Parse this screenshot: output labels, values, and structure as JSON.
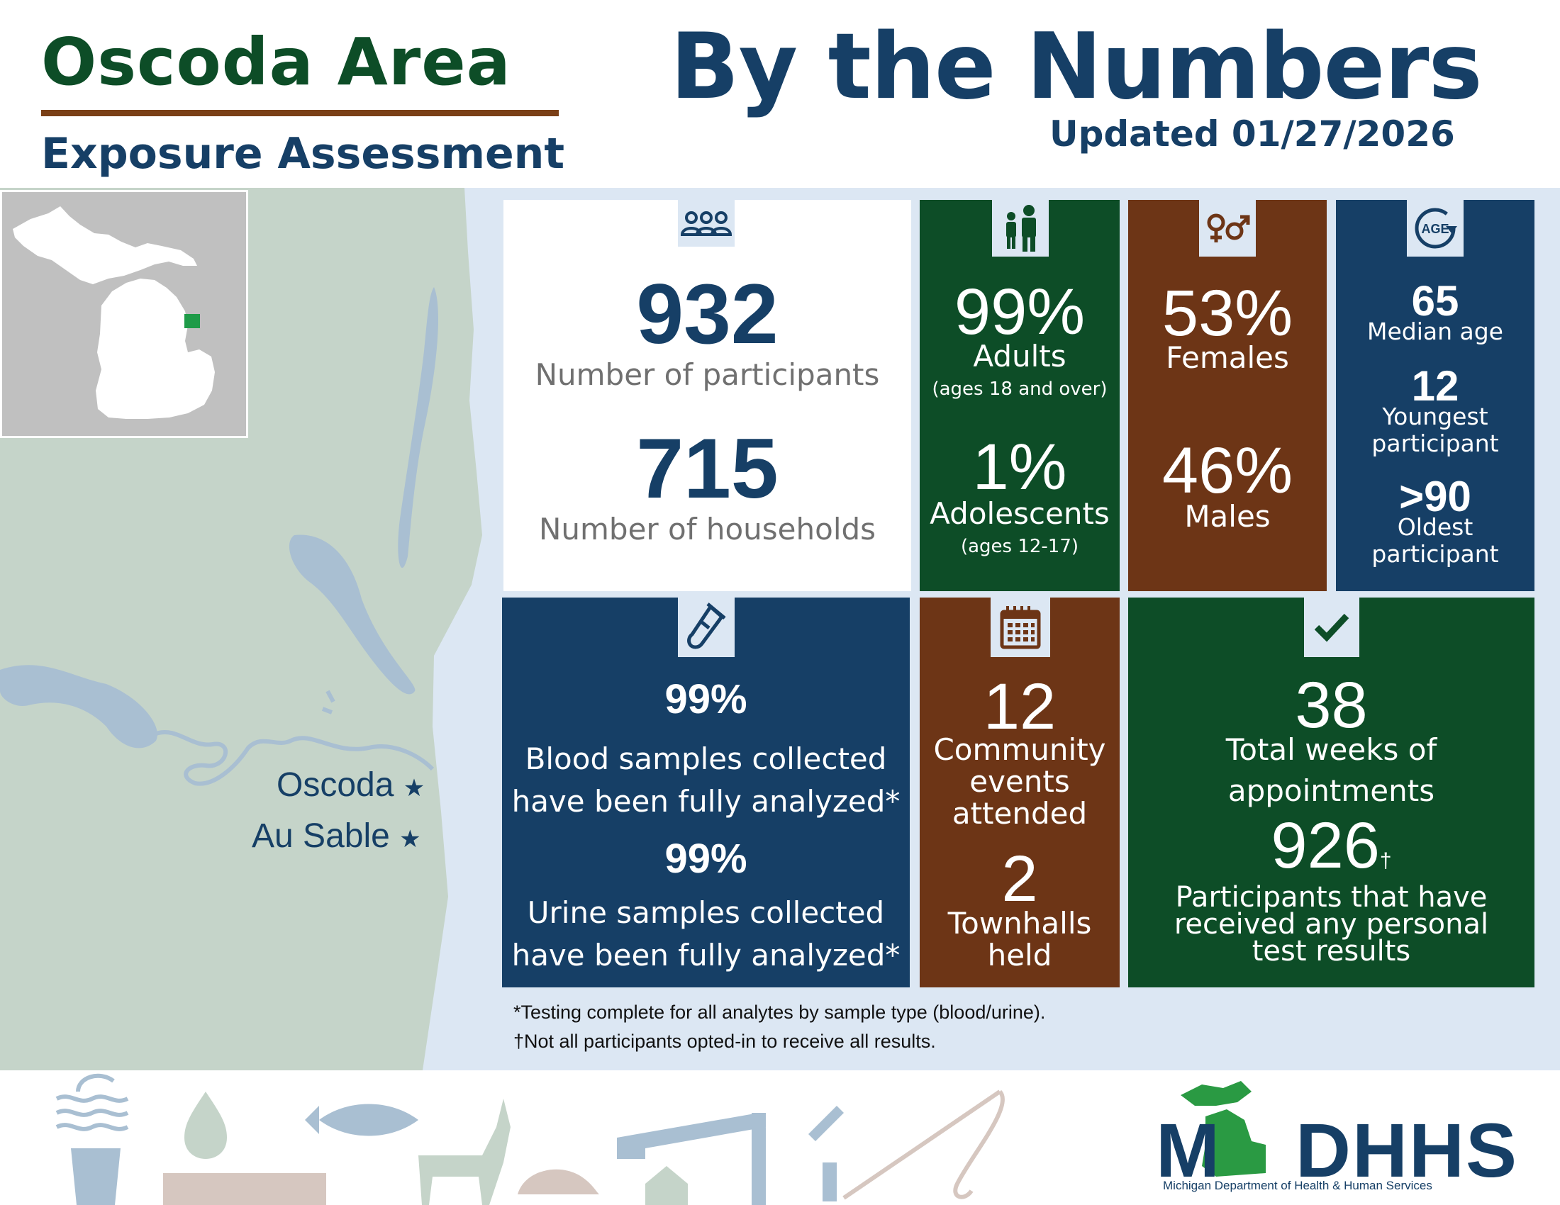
{
  "header": {
    "title_line1": "Oscoda Area",
    "title_line2": "Exposure Assessment",
    "headline": "By the Numbers",
    "updated": "Updated 01/27/2026"
  },
  "map": {
    "towns": [
      "Oscoda",
      "Au Sable"
    ],
    "star": "★"
  },
  "participants": {
    "count": "932",
    "count_label": "Number of participants",
    "households": "715",
    "households_label": "Number of households",
    "icon": "people-group-icon"
  },
  "age_groups": {
    "adults_pct": "99%",
    "adults_label": "Adults",
    "adults_note": "(ages 18 and over)",
    "adolescents_pct": "1%",
    "adolescents_label": "Adolescents",
    "adolescents_note": "(ages 12-17)",
    "icon": "adult-child-icon"
  },
  "sex": {
    "females_pct": "53%",
    "females_label": "Females",
    "males_pct": "46%",
    "males_label": "Males",
    "icon": "gender-icon"
  },
  "age": {
    "icon_text": "AGE",
    "median": "65",
    "median_label": "Median age",
    "youngest": "12",
    "youngest_label_1": "Youngest",
    "youngest_label_2": "participant",
    "oldest": ">90",
    "oldest_label_1": "Oldest",
    "oldest_label_2": "participant"
  },
  "samples": {
    "blood_pct": "99%",
    "blood_label_1": "Blood samples collected",
    "blood_label_2": "have been fully analyzed*",
    "urine_pct": "99%",
    "urine_label_1": "Urine samples collected",
    "urine_label_2": "have been fully analyzed*",
    "icon": "test-tube-icon"
  },
  "events": {
    "community": "12",
    "community_label_1": "Community",
    "community_label_2": "events",
    "community_label_3": "attended",
    "townhalls": "2",
    "townhalls_label_1": "Townhalls",
    "townhalls_label_2": "held",
    "icon": "calendar-icon"
  },
  "appointments": {
    "weeks": "38",
    "weeks_label_1": "Total weeks of",
    "weeks_label_2": "appointments",
    "results": "926",
    "dagger": "†",
    "results_label_1": "Participants that have",
    "results_label_2": "received any personal",
    "results_label_3": "test results",
    "icon": "checkmark-icon"
  },
  "footnotes": {
    "asterisk": "*Testing complete for all analytes by sample type (blood/urine).",
    "dagger": "†Not all participants opted-in to receive all results."
  },
  "logo": {
    "text_left": "M",
    "text_right": "DHHS",
    "subtitle": "Michigan Department of Health & Human Services"
  },
  "colors": {
    "navy": "#163f66",
    "green": "#0d4d27",
    "brown": "#6d3516",
    "band": "#dce7f3",
    "land": "#c5d4c9"
  }
}
